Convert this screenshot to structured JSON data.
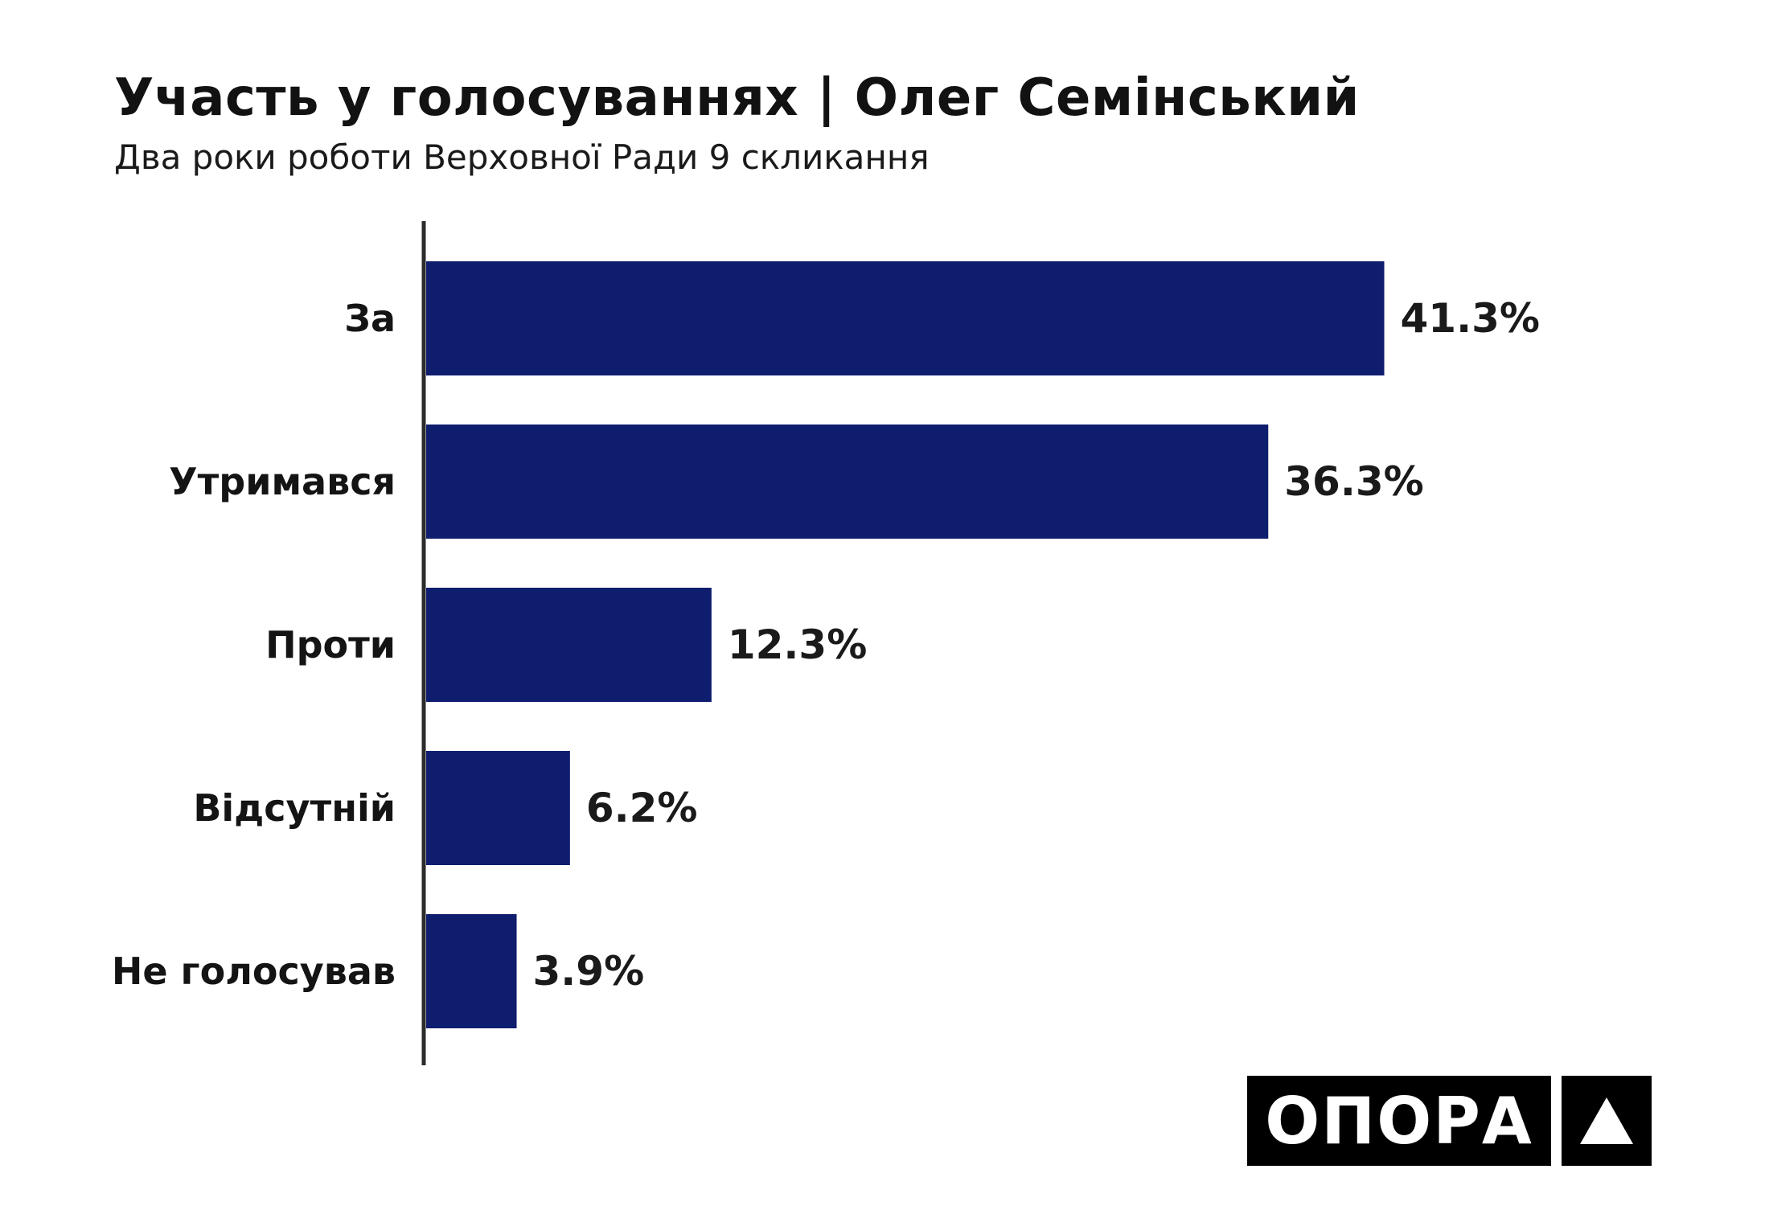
{
  "title": "Участь у голосуваннях | Олег Семінський",
  "subtitle": "Два роки роботи Верховної Ради 9 скликання",
  "logo": {
    "text": "ОПОРА",
    "mark_icon": "triangle-icon"
  },
  "colors": {
    "bar": "#0f1d6e",
    "axis": "#2b2b2b",
    "logo_bg": "#000000"
  },
  "chart_data": {
    "type": "bar",
    "orientation": "horizontal",
    "title": "Участь у голосуваннях | Олег Семінський",
    "subtitle": "Два роки роботи Верховної Ради 9 скликання",
    "categories": [
      "За",
      "Утримався",
      "Проти",
      "Відсутній",
      "Не голосував"
    ],
    "values": [
      41.3,
      36.3,
      12.3,
      6.2,
      3.9
    ],
    "value_labels": [
      "41.3%",
      "36.3%",
      "12.3%",
      "6.2%",
      "3.9%"
    ],
    "unit": "%",
    "xlim": [
      0,
      50
    ],
    "grid": false,
    "legend": "none"
  }
}
